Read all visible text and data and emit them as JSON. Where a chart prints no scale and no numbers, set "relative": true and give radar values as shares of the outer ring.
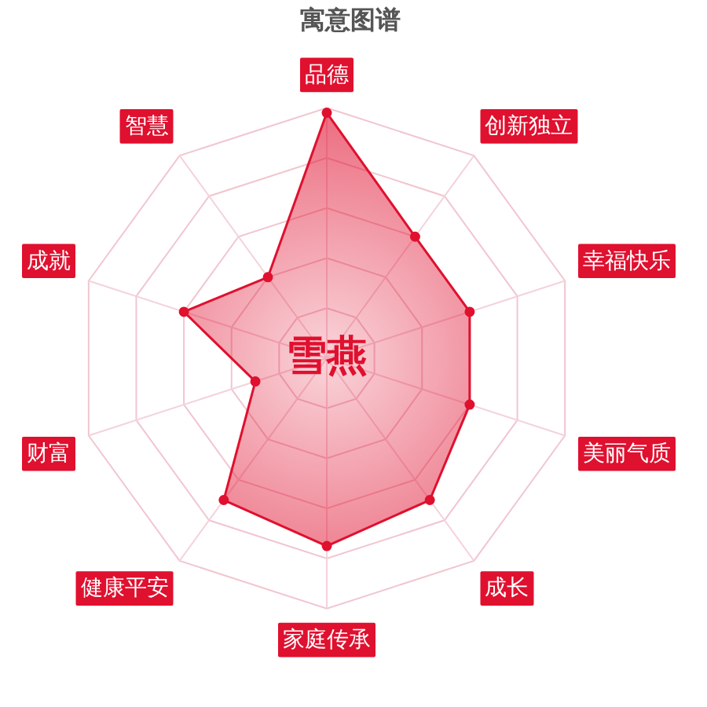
{
  "chart_data": {
    "type": "radar",
    "title": "寓意图谱",
    "annotations": [
      "雪燕"
    ],
    "categories": [
      "品德",
      "创新独立",
      "幸福快乐",
      "美丽气质",
      "成长",
      "家庭传承",
      "健康平安",
      "财富",
      "成就",
      "智慧"
    ],
    "series": [
      {
        "color": "#e0102f",
        "values": [
          0.98,
          0.6,
          0.6,
          0.6,
          0.7,
          0.75,
          0.7,
          0.3,
          0.6,
          0.4
        ]
      }
    ],
    "relative": true,
    "grid": true,
    "marker": "circle"
  }
}
